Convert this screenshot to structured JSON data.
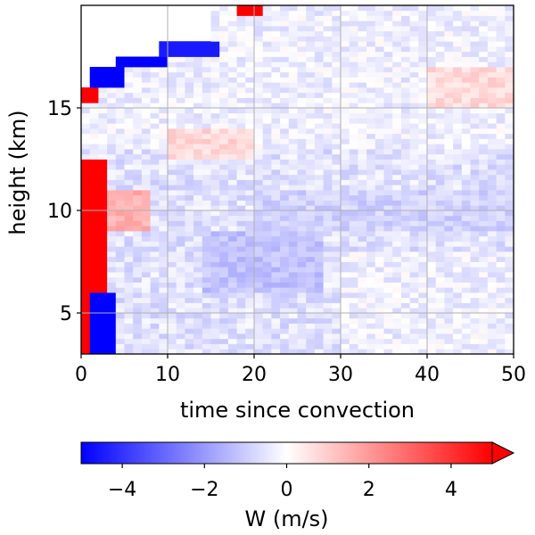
{
  "chart_data": {
    "type": "heatmap",
    "title": "",
    "xlabel": "time since convection",
    "ylabel": "height (km)",
    "xlim": [
      0,
      50
    ],
    "ylim": [
      3,
      20
    ],
    "x_ticks": [
      0,
      10,
      20,
      30,
      40,
      50
    ],
    "y_ticks": [
      5,
      10,
      15
    ],
    "grid": true,
    "grid_color": "#b0b0b0",
    "colormap": "bwr",
    "colors": {
      "low": "#0000ff",
      "mid": "#ffffff",
      "high": "#ff0000"
    },
    "colorbar": {
      "label": "W (m/s)",
      "orientation": "horizontal",
      "placement": "bottom",
      "vmin": -5,
      "vmax": 5,
      "ticks": [
        -4,
        -2,
        0,
        2,
        4
      ],
      "extend": "max"
    },
    "grid_resolution": {
      "dx": 1,
      "dz": 0.25
    },
    "description_of_features": "",
    "features": [
      {
        "kind": "updraft",
        "x": [
          0.5,
          2.5
        ],
        "z": [
          3.0,
          12.5
        ],
        "w": 5.5
      },
      {
        "kind": "updraft_top",
        "x": [
          0.5,
          1.5
        ],
        "z": [
          15.3,
          15.9
        ],
        "w": 5.5
      },
      {
        "kind": "downdraft_low",
        "x": [
          1.5,
          3.5
        ],
        "z": [
          3.0,
          6.0
        ],
        "w": -5.0
      },
      {
        "kind": "downdraft_top_band",
        "x": [
          1.5,
          4.5
        ],
        "z": [
          16.0,
          17.0
        ],
        "w": -5.0
      },
      {
        "kind": "downdraft_top_band",
        "x": [
          4.5,
          9.5
        ],
        "z": [
          17.0,
          17.6
        ],
        "w": -5.0
      },
      {
        "kind": "downdraft_top_band",
        "x": [
          9.5,
          15.5
        ],
        "z": [
          17.6,
          18.3
        ],
        "w": -4.5
      },
      {
        "kind": "updraft_top_cap",
        "x": [
          18.5,
          20.5
        ],
        "z": [
          19.4,
          20.0
        ],
        "w": 5.0
      },
      {
        "kind": "warm_weak_patch",
        "x": [
          3,
          8
        ],
        "z": [
          9,
          11
        ],
        "w": 1.6
      },
      {
        "kind": "warm_weak_patch",
        "x": [
          10,
          20
        ],
        "z": [
          12.5,
          14
        ],
        "w": 0.8
      },
      {
        "kind": "warm_weak_patch",
        "x": [
          40,
          50
        ],
        "z": [
          15,
          17
        ],
        "w": 0.7
      },
      {
        "kind": "cool_weak_patch",
        "x": [
          14,
          28
        ],
        "z": [
          6,
          9
        ],
        "w": -1.2
      },
      {
        "kind": "cool_weak_patch",
        "x": [
          20,
          50
        ],
        "z": [
          9,
          11
        ],
        "w": -0.9
      }
    ]
  }
}
